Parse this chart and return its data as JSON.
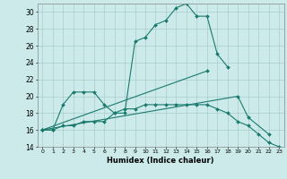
{
  "xlabel": "Humidex (Indice chaleur)",
  "background_color": "#cceaea",
  "grid_color": "#aacccc",
  "line_color": "#1a7a6e",
  "x": [
    0,
    1,
    2,
    3,
    4,
    5,
    6,
    7,
    8,
    9,
    10,
    11,
    12,
    13,
    14,
    15,
    16,
    17,
    18,
    19,
    20,
    21,
    22,
    23
  ],
  "series1_x": [
    0,
    1,
    2,
    3,
    4,
    5,
    6,
    7,
    8,
    9,
    10,
    11,
    12,
    13,
    14,
    15,
    16,
    17,
    18
  ],
  "series1_y": [
    16,
    16,
    19,
    20.5,
    20.5,
    20.5,
    19,
    18,
    18,
    26.5,
    27,
    28.5,
    29,
    30.5,
    31,
    29.5,
    29.5,
    25,
    23.5
  ],
  "series2_x": [
    0,
    1,
    2,
    3,
    4,
    5,
    6,
    7,
    8,
    9,
    10,
    11,
    12,
    13,
    14,
    15,
    16,
    17,
    18,
    19,
    20,
    21,
    22,
    23
  ],
  "series2_y": [
    16,
    16,
    16.5,
    16.5,
    17,
    17,
    17,
    18,
    18.5,
    18.5,
    19,
    19,
    19,
    19,
    19,
    19,
    19,
    18.5,
    18,
    17,
    16.5,
    15.5,
    14.5,
    14
  ],
  "series3_x": [
    0,
    19,
    20,
    22
  ],
  "series3_y": [
    16,
    20,
    17.5,
    15.5
  ],
  "series4_x": [
    0,
    16
  ],
  "series4_y": [
    16,
    23
  ],
  "ylim": [
    14,
    31
  ],
  "xlim": [
    -0.5,
    23.5
  ],
  "yticks": [
    14,
    16,
    18,
    20,
    22,
    24,
    26,
    28,
    30
  ],
  "xticks": [
    0,
    1,
    2,
    3,
    4,
    5,
    6,
    7,
    8,
    9,
    10,
    11,
    12,
    13,
    14,
    15,
    16,
    17,
    18,
    19,
    20,
    21,
    22,
    23
  ],
  "xlabel_fontsize": 6,
  "tick_fontsize": 4.5,
  "ytick_fontsize": 5.5,
  "linewidth": 0.8,
  "markersize": 2.0
}
